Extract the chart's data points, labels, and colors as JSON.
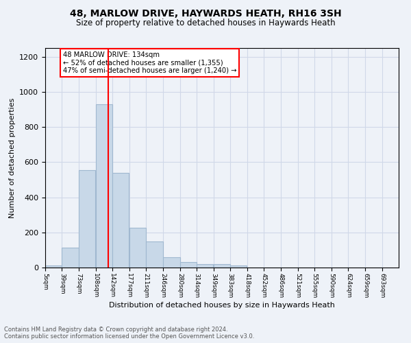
{
  "title": "48, MARLOW DRIVE, HAYWARDS HEATH, RH16 3SH",
  "subtitle": "Size of property relative to detached houses in Haywards Heath",
  "xlabel": "Distribution of detached houses by size in Haywards Heath",
  "ylabel": "Number of detached properties",
  "bin_labels": [
    "5sqm",
    "39sqm",
    "73sqm",
    "108sqm",
    "142sqm",
    "177sqm",
    "211sqm",
    "246sqm",
    "280sqm",
    "314sqm",
    "349sqm",
    "383sqm",
    "418sqm",
    "452sqm",
    "486sqm",
    "521sqm",
    "555sqm",
    "590sqm",
    "624sqm",
    "659sqm",
    "693sqm"
  ],
  "bin_edges": [
    5,
    39,
    73,
    108,
    142,
    177,
    211,
    246,
    280,
    314,
    349,
    383,
    418,
    452,
    486,
    521,
    555,
    590,
    624,
    659,
    693
  ],
  "bar_heights": [
    10,
    115,
    555,
    930,
    540,
    225,
    148,
    58,
    32,
    20,
    20,
    10,
    0,
    0,
    0,
    0,
    0,
    0,
    0,
    0
  ],
  "bar_color": "#c8d8e8",
  "bar_edge_color": "#a0b8d0",
  "bar_linewidth": 0.8,
  "vline_x": 134,
  "vline_color": "red",
  "vline_linewidth": 1.5,
  "annotation_box_text": "48 MARLOW DRIVE: 134sqm\n← 52% of detached houses are smaller (1,355)\n47% of semi-detached houses are larger (1,240) →",
  "ylim": [
    0,
    1250
  ],
  "yticks": [
    0,
    200,
    400,
    600,
    800,
    1000,
    1200
  ],
  "grid_color": "#d0d8e8",
  "background_color": "#eef2f8",
  "footer_line1": "Contains HM Land Registry data © Crown copyright and database right 2024.",
  "footer_line2": "Contains public sector information licensed under the Open Government Licence v3.0."
}
